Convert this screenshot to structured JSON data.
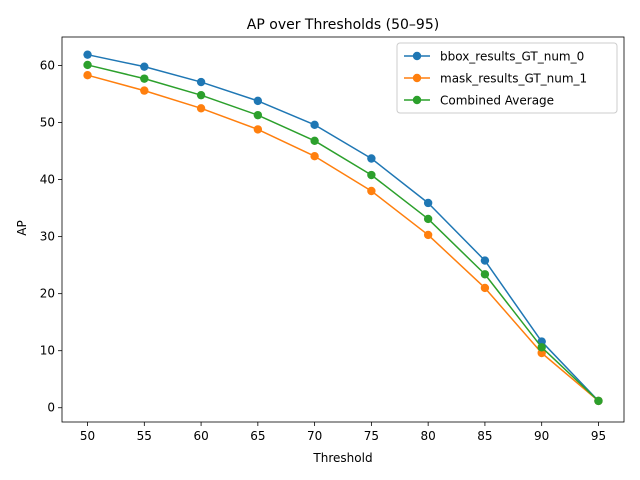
{
  "chart_data": {
    "type": "line",
    "title": "AP over Thresholds (50–95)",
    "xlabel": "Threshold",
    "ylabel": "AP",
    "x": [
      50,
      55,
      60,
      65,
      70,
      75,
      80,
      85,
      90,
      95
    ],
    "xlim": [
      47.75,
      97.25
    ],
    "ylim": [
      -2.5,
      65
    ],
    "xticks": [
      50,
      55,
      60,
      65,
      70,
      75,
      80,
      85,
      90,
      95
    ],
    "yticks": [
      0,
      10,
      20,
      30,
      40,
      50,
      60
    ],
    "grid": false,
    "legend_position": "upper right",
    "series": [
      {
        "name": "bbox_results_GT_num_0",
        "color": "#1f77b4",
        "marker": "circle",
        "values": [
          61.9,
          59.8,
          57.1,
          53.8,
          49.6,
          43.7,
          35.9,
          25.8,
          11.6,
          1.2
        ]
      },
      {
        "name": "mask_results_GT_num_1",
        "color": "#ff7f0e",
        "marker": "circle",
        "values": [
          58.3,
          55.6,
          52.5,
          48.8,
          44.1,
          38.0,
          30.3,
          21.0,
          9.6,
          1.2
        ]
      },
      {
        "name": "Combined Average",
        "color": "#2ca02c",
        "marker": "circle",
        "values": [
          60.1,
          57.7,
          54.8,
          51.3,
          46.8,
          40.8,
          33.1,
          23.4,
          10.6,
          1.2
        ]
      }
    ]
  }
}
